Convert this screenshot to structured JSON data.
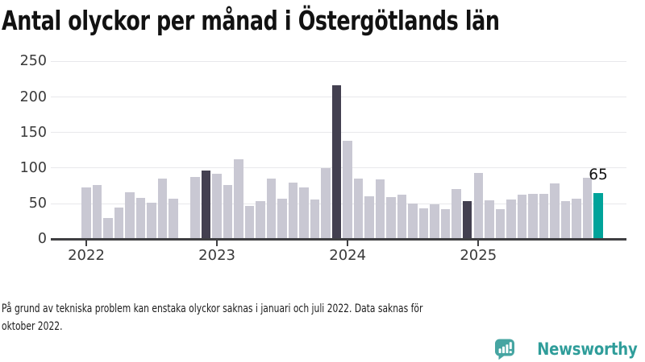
{
  "title": "Antal olyckor per månad i Östergötlands län",
  "footnote": {
    "line1": "På grund av tekniska problem kan enstaka olyckor saknas i januari och juli 2022. Data saknas för",
    "line2": "oktober 2022."
  },
  "logo": {
    "name": "Newsworthy"
  },
  "chart_data": {
    "type": "bar",
    "title": "Antal olyckor per månad i Östergötlands län",
    "xlabel": "",
    "ylabel": "",
    "ylim": [
      0,
      250
    ],
    "y_ticks": [
      0,
      50,
      100,
      150,
      200,
      250
    ],
    "x_tick_labels": [
      "2022",
      "2023",
      "2024",
      "2025"
    ],
    "grid": "horizontal",
    "legend": "none",
    "annotation": {
      "month": "2025-12",
      "label": "65"
    },
    "colors": {
      "default": "#c9c8d3",
      "highlight_dark": "#434050",
      "highlight_accent": "#00a39a",
      "axis": "#3f3f42",
      "gridline": "#e8e8eb"
    },
    "bars": [
      {
        "month": "2022-01",
        "value": 73
      },
      {
        "month": "2022-02",
        "value": 76
      },
      {
        "month": "2022-03",
        "value": 30
      },
      {
        "month": "2022-04",
        "value": 44
      },
      {
        "month": "2022-05",
        "value": 66
      },
      {
        "month": "2022-06",
        "value": 58
      },
      {
        "month": "2022-07",
        "value": 51
      },
      {
        "month": "2022-08",
        "value": 85
      },
      {
        "month": "2022-09",
        "value": 57
      },
      {
        "month": "2022-10",
        "value": null
      },
      {
        "month": "2022-11",
        "value": 87
      },
      {
        "month": "2022-12",
        "value": 97,
        "highlight": "dark"
      },
      {
        "month": "2023-01",
        "value": 92
      },
      {
        "month": "2023-02",
        "value": 76
      },
      {
        "month": "2023-03",
        "value": 112
      },
      {
        "month": "2023-04",
        "value": 47
      },
      {
        "month": "2023-05",
        "value": 54
      },
      {
        "month": "2023-06",
        "value": 85
      },
      {
        "month": "2023-07",
        "value": 57
      },
      {
        "month": "2023-08",
        "value": 80
      },
      {
        "month": "2023-09",
        "value": 73
      },
      {
        "month": "2023-10",
        "value": 56
      },
      {
        "month": "2023-11",
        "value": 100
      },
      {
        "month": "2023-12",
        "value": 216,
        "highlight": "dark"
      },
      {
        "month": "2024-01",
        "value": 138
      },
      {
        "month": "2024-02",
        "value": 85
      },
      {
        "month": "2024-03",
        "value": 60
      },
      {
        "month": "2024-04",
        "value": 84
      },
      {
        "month": "2024-05",
        "value": 59
      },
      {
        "month": "2024-06",
        "value": 63
      },
      {
        "month": "2024-07",
        "value": 50
      },
      {
        "month": "2024-08",
        "value": 43
      },
      {
        "month": "2024-09",
        "value": 49
      },
      {
        "month": "2024-10",
        "value": 42
      },
      {
        "month": "2024-11",
        "value": 70
      },
      {
        "month": "2024-12",
        "value": 53,
        "highlight": "dark"
      },
      {
        "month": "2025-01",
        "value": 93
      },
      {
        "month": "2025-02",
        "value": 55
      },
      {
        "month": "2025-03",
        "value": 42
      },
      {
        "month": "2025-04",
        "value": 56
      },
      {
        "month": "2025-05",
        "value": 62
      },
      {
        "month": "2025-06",
        "value": 64
      },
      {
        "month": "2025-07",
        "value": 64
      },
      {
        "month": "2025-08",
        "value": 78
      },
      {
        "month": "2025-09",
        "value": 54
      },
      {
        "month": "2025-10",
        "value": 57
      },
      {
        "month": "2025-11",
        "value": 86
      },
      {
        "month": "2025-12",
        "value": 65,
        "highlight": "accent"
      }
    ]
  }
}
